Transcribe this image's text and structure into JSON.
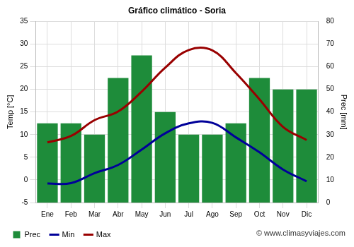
{
  "chart_data": {
    "type": "bar",
    "title": "Gráfico climático - Soria",
    "y_label": "Temp [°C]",
    "y2_label": "Prec [mm]",
    "annotation": "© www.climasyviajes.com",
    "categories": [
      "Ene",
      "Feb",
      "Mar",
      "Abr",
      "May",
      "Jun",
      "Jul",
      "Ago",
      "Sep",
      "Oct",
      "Nov",
      "Dic"
    ],
    "series": [
      {
        "name": "Prec",
        "type": "bar",
        "axis": "y2",
        "color": "#1e8c3a",
        "values": [
          35,
          35,
          30,
          55,
          65,
          40,
          30,
          30,
          35,
          55,
          50,
          50
        ]
      },
      {
        "name": "Min",
        "type": "line",
        "color": "#000099",
        "marker": "none",
        "line_style": "solid",
        "values": [
          -0.8,
          -0.7,
          1.5,
          3.3,
          6.7,
          10.3,
          12.5,
          12.6,
          9.4,
          6.1,
          2.3,
          -0.3
        ]
      },
      {
        "name": "Max",
        "type": "line",
        "color": "#990000",
        "marker": "none",
        "line_style": "solid",
        "values": [
          8.3,
          9.7,
          13.2,
          15.1,
          19.5,
          24.8,
          28.7,
          28.6,
          23.6,
          17.8,
          11.7,
          8.8
        ]
      }
    ],
    "ylim": [
      -5,
      35
    ],
    "yticks": [
      -5,
      0,
      5,
      10,
      15,
      20,
      25,
      30,
      35
    ],
    "y2lim": [
      0,
      80
    ],
    "y2ticks": [
      0,
      10,
      20,
      30,
      40,
      50,
      60,
      70,
      80
    ],
    "grid": true,
    "legend": "bottom-left"
  }
}
